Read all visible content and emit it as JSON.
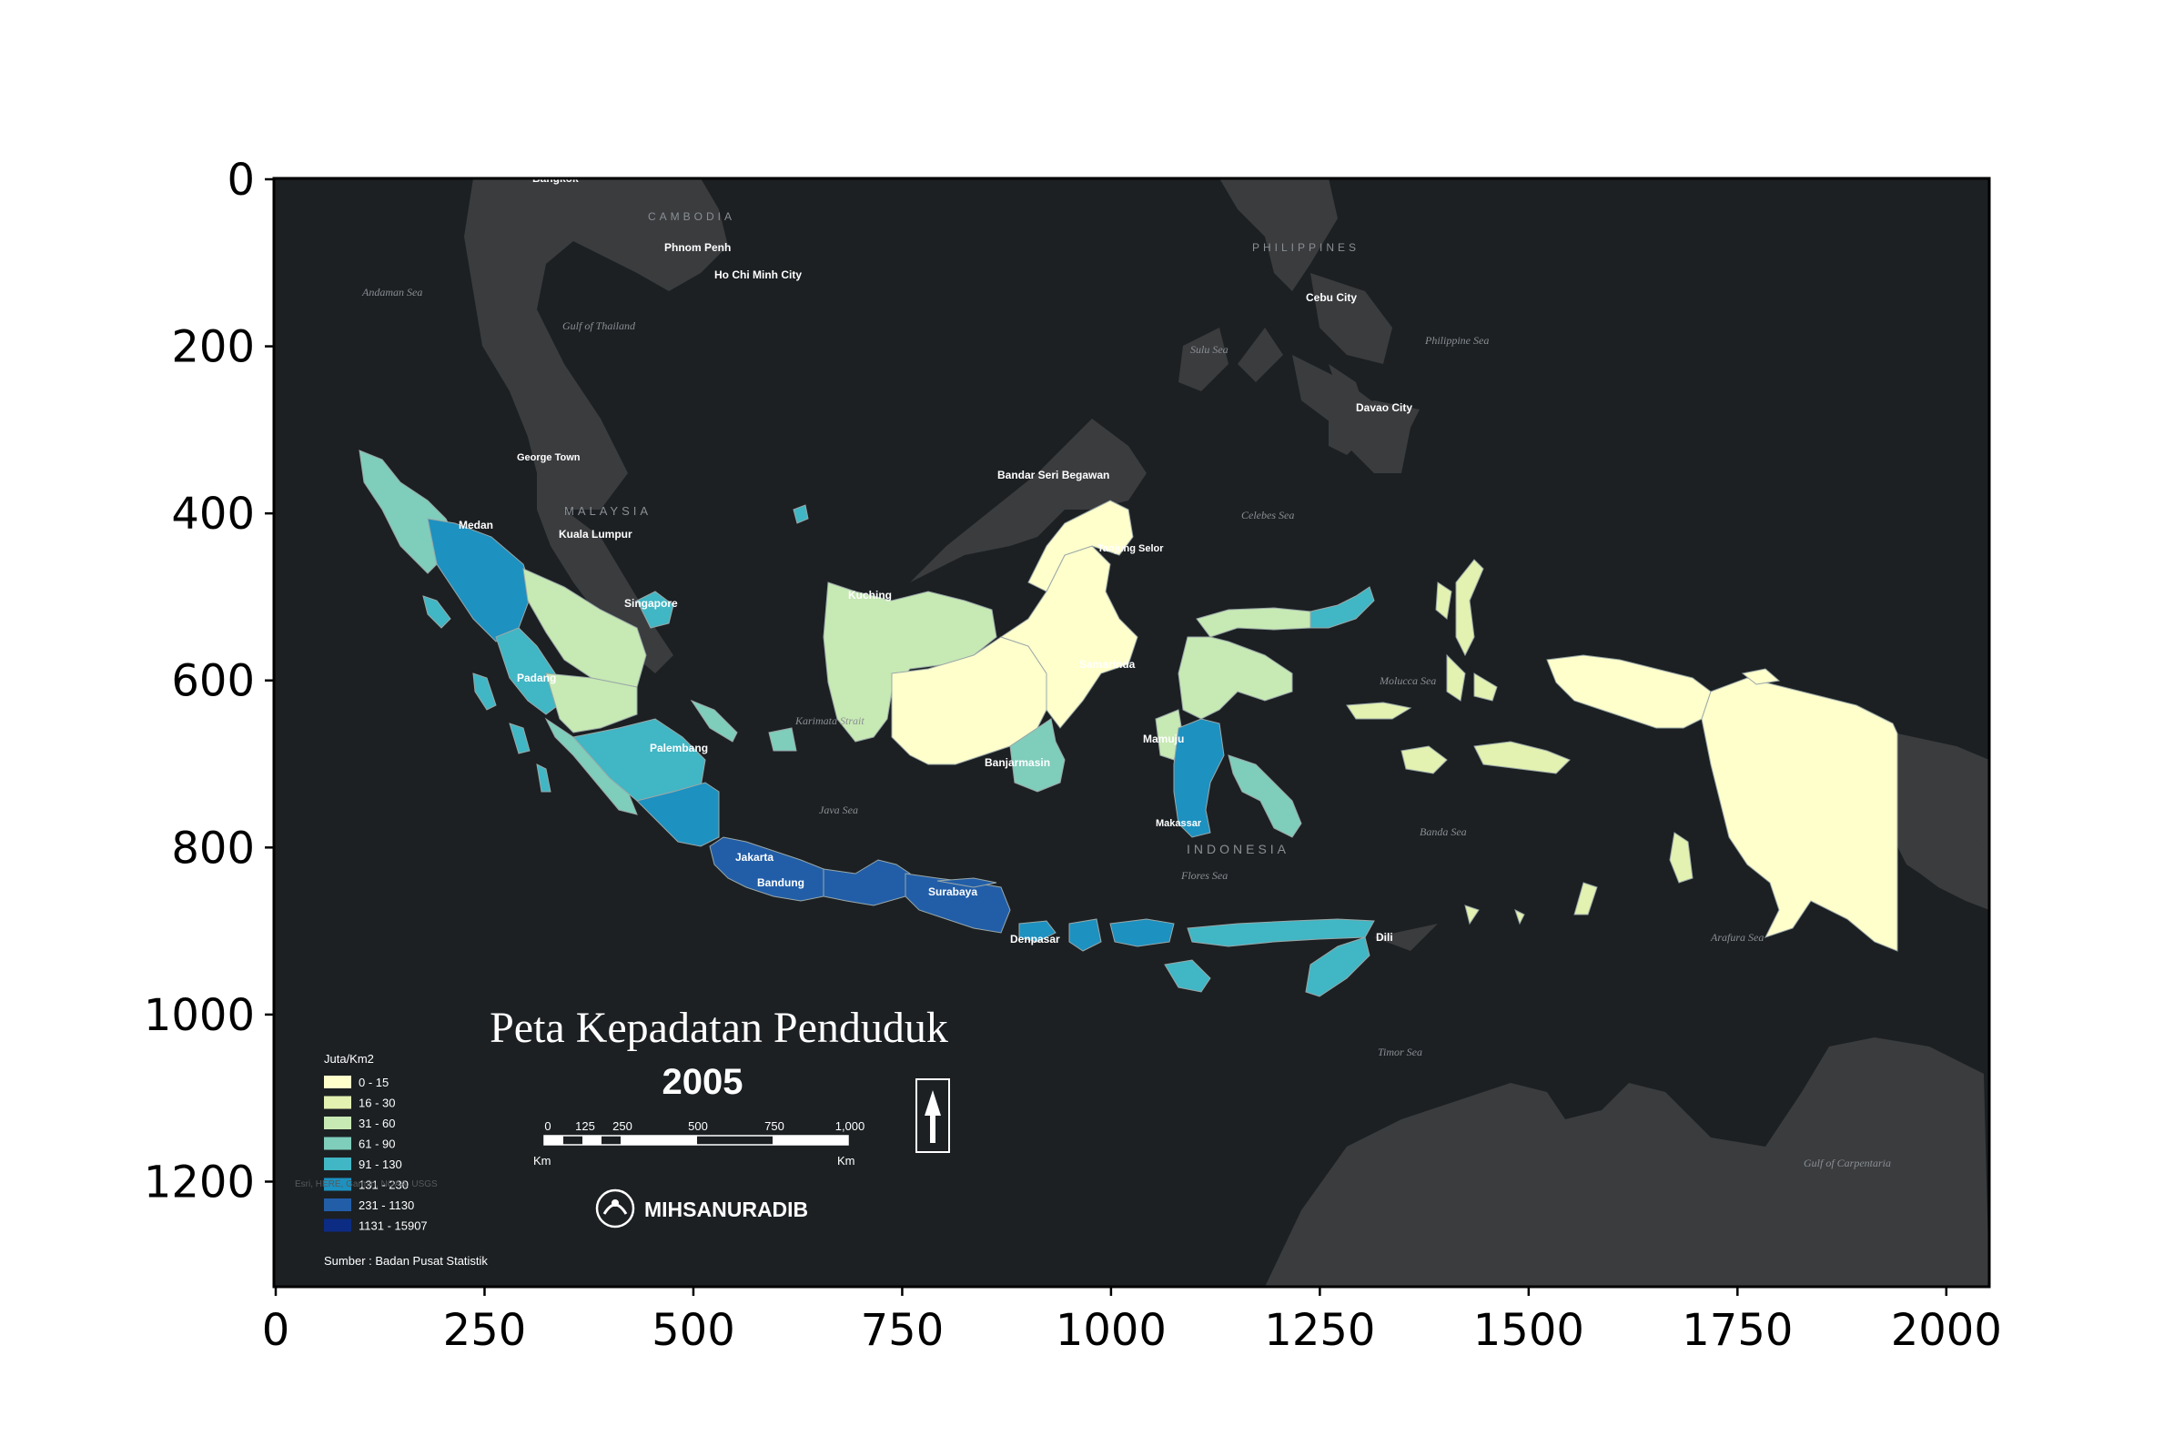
{
  "title": "Peta Kepadatan Penduduk",
  "year": "2005",
  "legend": {
    "title": "Juta/Km2",
    "items": [
      {
        "label": "0 - 15",
        "color": "#ffffcc"
      },
      {
        "label": "16 - 30",
        "color": "#e3f1b1"
      },
      {
        "label": "31 - 60",
        "color": "#c7e9b4"
      },
      {
        "label": "61 - 90",
        "color": "#7fcdbb"
      },
      {
        "label": "91 - 130",
        "color": "#41b6c4"
      },
      {
        "label": "131 - 230",
        "color": "#1d91c0"
      },
      {
        "label": "231 - 1130",
        "color": "#225ea8"
      },
      {
        "label": "1131 - 15907",
        "color": "#0c2c84"
      }
    ]
  },
  "source": "Sumber : Badan Pusat Statistik",
  "credit": "Esri, HERE, Garmin, NOAA, USGS",
  "author": "MIHSANURADIB",
  "scalebar": {
    "ticks": [
      "0",
      "125",
      "250",
      "500",
      "750",
      "1,000"
    ],
    "unit": "Km"
  },
  "axes": {
    "x_ticks": [
      "0",
      "250",
      "500",
      "750",
      "1000",
      "1250",
      "1500",
      "1750",
      "2000"
    ],
    "y_ticks": [
      "0",
      "200",
      "400",
      "600",
      "800",
      "1000",
      "1200"
    ]
  },
  "places": [
    "Bangkok",
    "Phnom Penh",
    "Ho Chi Minh City",
    "Cebu City",
    "Davao City",
    "George Town",
    "Kuala Lumpur",
    "Singapore",
    "Medan",
    "Padang",
    "Palembang",
    "Jakarta",
    "Bandung",
    "Surabaya",
    "Denpasar",
    "Dili",
    "Kuching",
    "Bandar Seri Begawan",
    "Samarinda",
    "Tanjung Selor",
    "Banjarmasin",
    "Mamuju",
    "Makassar"
  ],
  "countries": [
    "CAMBODIA",
    "PHILIPPINES",
    "MALAYSIA",
    "INDONESIA"
  ],
  "seas": [
    "Andaman Sea",
    "Gulf of Thailand",
    "Sulu Sea",
    "Philippine Sea",
    "Celebes Sea",
    "Karimata Strait",
    "Java Sea",
    "Molucca Sea",
    "Banda Sea",
    "Flores Sea",
    "Arafura Sea",
    "Timor Sea",
    "Gulf of Carpentaria"
  ],
  "colors": {
    "background": "#1c2023",
    "land": "#3a3c3e",
    "axes_frame": "#000000"
  }
}
